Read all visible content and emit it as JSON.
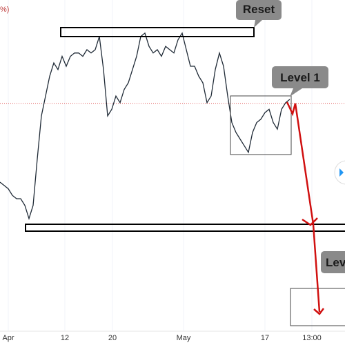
{
  "chart_data": {
    "type": "line",
    "corner_label": "%)",
    "color": "#1f2a36",
    "ylim": [
      0,
      100
    ],
    "values": [
      45,
      44,
      43,
      41,
      40,
      40,
      38,
      34,
      38,
      52,
      65,
      71,
      77,
      81,
      79,
      83,
      80,
      83,
      84,
      84,
      83,
      85,
      84,
      85,
      89,
      79,
      65,
      67,
      71,
      69,
      73,
      75,
      79,
      83,
      89,
      90,
      86,
      84,
      85,
      83,
      86,
      85,
      84,
      88,
      90,
      85,
      80,
      80,
      77,
      75,
      69,
      71,
      79,
      84,
      80,
      71,
      63,
      60,
      58,
      56,
      54,
      60,
      63,
      64,
      66,
      67,
      63,
      61,
      67,
      69,
      70
    ],
    "x_labels": [
      "Apr",
      "12",
      "20",
      "May",
      "17",
      "13:00"
    ],
    "annotations": [
      "Reset",
      "Level 1",
      "Lev"
    ]
  }
}
